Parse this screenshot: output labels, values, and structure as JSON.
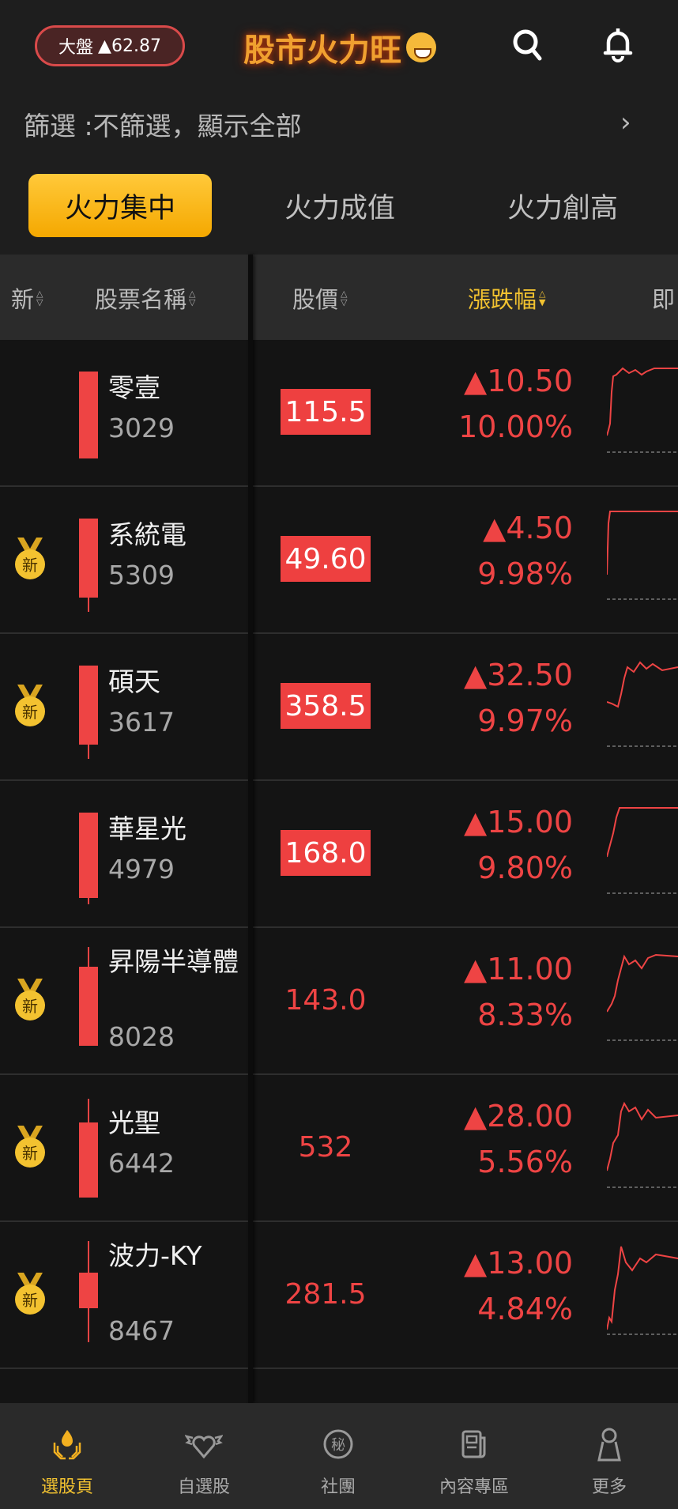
{
  "header": {
    "index_label": "大盤",
    "index_change": "▲62.87",
    "logo_text": "股市火力旺"
  },
  "filter": {
    "text": "篩選 :不篩選，顯示全部"
  },
  "tabs": [
    {
      "label": "火力集中",
      "active": true
    },
    {
      "label": "火力成值",
      "active": false
    },
    {
      "label": "火力創高",
      "active": false
    }
  ],
  "columns": {
    "new": "新",
    "name": "股票名稱",
    "price": "股價",
    "change": "漲跌幅",
    "realtime": "即"
  },
  "sort_active": "change",
  "colors": {
    "up": "#ee4444",
    "accent": "#f2c230",
    "background": "#141414"
  },
  "new_badge": "新",
  "stocks": [
    {
      "name": "零壹",
      "code": "3029",
      "price": "115.5",
      "change": "▲10.50",
      "pct": "10.00%",
      "is_new": false,
      "limit_up": true,
      "candle": "full"
    },
    {
      "name": "系統電",
      "code": "5309",
      "price": "49.60",
      "change": "▲4.50",
      "pct": "9.98%",
      "is_new": true,
      "limit_up": true,
      "candle": "lower-wick"
    },
    {
      "name": "碩天",
      "code": "3617",
      "price": "358.5",
      "change": "▲32.50",
      "pct": "9.97%",
      "is_new": true,
      "limit_up": true,
      "candle": "lower-wick"
    },
    {
      "name": "華星光",
      "code": "4979",
      "price": "168.0",
      "change": "▲15.00",
      "pct": "9.80%",
      "is_new": false,
      "limit_up": true,
      "candle": "lower-wick-short"
    },
    {
      "name": "昇陽半導體",
      "code": "8028",
      "price": "143.0",
      "change": "▲11.00",
      "pct": "8.33%",
      "is_new": true,
      "limit_up": false,
      "candle": "upper-wick"
    },
    {
      "name": "光聖",
      "code": "6442",
      "price": "532",
      "change": "▲28.00",
      "pct": "5.56%",
      "is_new": true,
      "limit_up": false,
      "candle": "upper-wick-long"
    },
    {
      "name": "波力-KY",
      "code": "8467",
      "price": "281.5",
      "change": "▲13.00",
      "pct": "4.84%",
      "is_new": true,
      "limit_up": false,
      "candle": "both-wicks"
    }
  ],
  "bottom_nav": [
    {
      "label": "選股頁",
      "icon": "flame-hands-icon",
      "active": true
    },
    {
      "label": "自選股",
      "icon": "winged-heart-icon",
      "active": false
    },
    {
      "label": "社團",
      "icon": "secret-circle-icon",
      "active": false
    },
    {
      "label": "內容專區",
      "icon": "newspaper-icon",
      "active": false
    },
    {
      "label": "更多",
      "icon": "person-icon",
      "active": false
    }
  ]
}
